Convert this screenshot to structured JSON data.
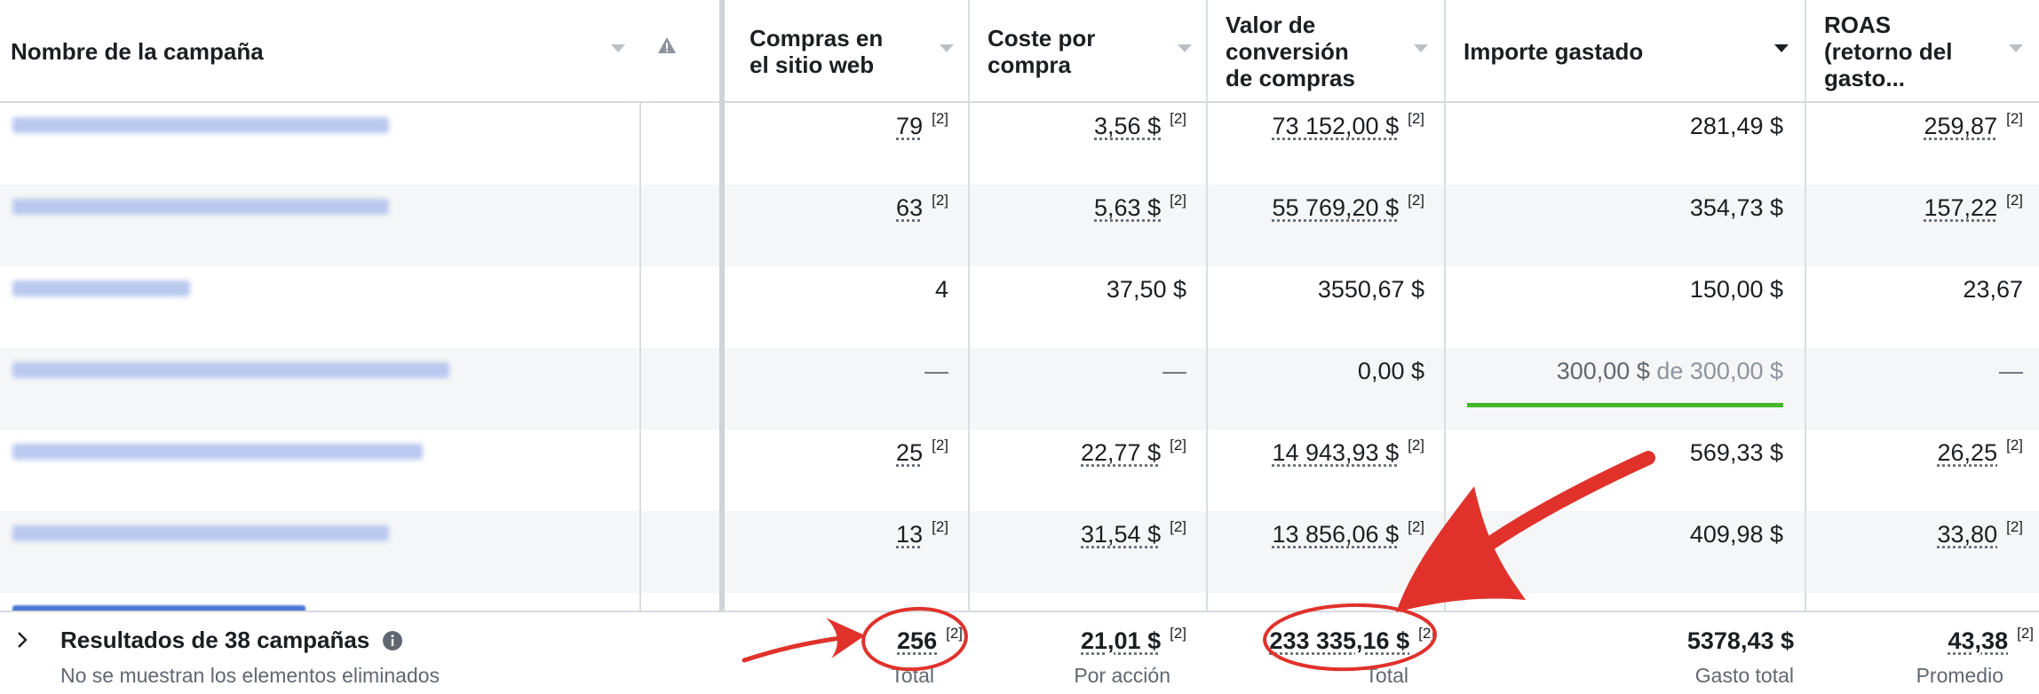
{
  "columns": {
    "name": "Nombre de la campaña",
    "purchases": "Compras en\nel sitio web",
    "cost_per_purchase": "Coste por\ncompra",
    "conversion_value": "Valor de\nconversión\nde compras",
    "amount_spent": "Importe gastado",
    "roas": "ROAS\n(retorno del\ngasto..."
  },
  "rows": [
    {
      "purchases": "79",
      "purchases_sup": "[2]",
      "cost": "3,56 $",
      "cost_sup": "[2]",
      "value": "73 152,00 $",
      "value_sup": "[2]",
      "spent": "281,49 $",
      "roas": "259,87",
      "roas_sup": "[2]"
    },
    {
      "purchases": "63",
      "purchases_sup": "[2]",
      "cost": "5,63 $",
      "cost_sup": "[2]",
      "value": "55 769,20 $",
      "value_sup": "[2]",
      "spent": "354,73 $",
      "roas": "157,22",
      "roas_sup": "[2]"
    },
    {
      "purchases": "4",
      "cost": "37,50 $",
      "value": "3550,67 $",
      "spent": "150,00 $",
      "roas": "23,67"
    },
    {
      "purchases": "—",
      "cost": "—",
      "value": "0,00 $",
      "spent_a": "300,00 $",
      "spent_b": "de 300,00 $",
      "roas": "—",
      "budget_progress": 1.0
    },
    {
      "purchases": "25",
      "purchases_sup": "[2]",
      "cost": "22,77 $",
      "cost_sup": "[2]",
      "value": "14 943,93 $",
      "value_sup": "[2]",
      "spent": "569,33 $",
      "roas": "26,25",
      "roas_sup": "[2]"
    },
    {
      "purchases": "13",
      "purchases_sup": "[2]",
      "cost": "31,54 $",
      "cost_sup": "[2]",
      "value": "13 856,06 $",
      "value_sup": "[2]",
      "spent": "409,98 $",
      "roas": "33,80",
      "roas_sup": "[2]"
    }
  ],
  "footer": {
    "title": "Resultados de 38 campañas",
    "subtitle": "No se muestran los elementos eliminados",
    "purchases": "256",
    "purchases_sup": "[2]",
    "purchases_caption": "Total",
    "cost": "21,01 $",
    "cost_sup": "[2]",
    "cost_caption": "Por acción",
    "value": "233 335,16 $",
    "value_sup": "[2]",
    "value_caption": "Total",
    "spent": "5378,43 $",
    "spent_caption": "Gasto total",
    "roas": "43,38",
    "roas_sup": "[2]",
    "roas_caption": "Promedio"
  },
  "colors": {
    "annotation_red": "#e0322b",
    "budget_bar": "#42b72a",
    "link_blur": "#b9c8ee"
  },
  "icons": [
    "sort-caret-icon",
    "warning-icon",
    "chevron-right-icon",
    "info-icon"
  ]
}
